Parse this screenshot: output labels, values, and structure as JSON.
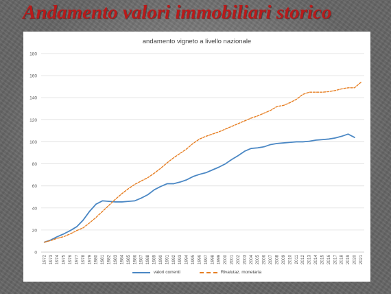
{
  "slide": {
    "title": "Andamento valori immobiliari storico"
  },
  "colors": {
    "background": "#7d7d7d",
    "title": "#b91a1a",
    "series_1": "#4a87c4",
    "series_2": "#e67e22"
  },
  "chart_data": {
    "type": "line",
    "title": "andamento vigneto a livello nazionale",
    "xlabel": "",
    "ylabel": "",
    "ylim": [
      0,
      180
    ],
    "yticks": [
      0,
      20,
      40,
      60,
      80,
      100,
      120,
      140,
      160,
      180
    ],
    "grid": true,
    "legend_position": "bottom",
    "x": [
      "1972",
      "1973",
      "1974",
      "1975",
      "1976",
      "1977",
      "1978",
      "1979",
      "1980",
      "1981",
      "1982",
      "1983",
      "1984",
      "1985",
      "1986",
      "1987",
      "1988",
      "1989",
      "1990",
      "1991",
      "1992",
      "1993",
      "1994",
      "1995",
      "1996",
      "1997",
      "1998",
      "1999",
      "2000",
      "2001",
      "2002",
      "2003",
      "2004",
      "2005",
      "2006",
      "2007",
      "2008",
      "2009",
      "2010",
      "2011",
      "2012",
      "2013",
      "2014",
      "2015",
      "2016",
      "2017",
      "2018",
      "2019",
      "2020",
      "2021"
    ],
    "series": [
      {
        "name": "valori correnti",
        "style": "solid",
        "values": [
          9,
          11,
          14,
          16.5,
          19.5,
          23,
          29,
          37,
          43.5,
          46.5,
          46,
          45.5,
          45.5,
          46,
          46.5,
          49,
          52,
          56.5,
          59.5,
          62,
          62,
          63.5,
          65.5,
          68.5,
          70.5,
          72,
          74.5,
          77,
          80,
          84,
          87.5,
          91.5,
          94,
          94.5,
          95.5,
          97.5,
          98.5,
          99,
          99.5,
          100,
          100,
          100.5,
          101.5,
          102,
          102.5,
          103.5,
          105,
          107,
          104,
          null
        ]
      },
      {
        "name": "Rivalutaz. monetaria",
        "style": "dashed",
        "values": [
          9,
          10.5,
          12.5,
          14,
          16.5,
          19.5,
          22,
          26.5,
          31.5,
          37,
          42.5,
          48,
          53,
          57.5,
          61.5,
          64.5,
          67.5,
          71.5,
          76,
          81,
          85.5,
          89.5,
          93.5,
          98.5,
          102.5,
          105,
          107,
          109,
          111.5,
          114,
          116.5,
          119,
          121.5,
          123.5,
          126,
          128.5,
          132,
          133,
          135.5,
          138.5,
          143,
          145,
          145,
          145,
          145.5,
          146.5,
          148,
          149,
          149,
          154
        ]
      }
    ]
  }
}
